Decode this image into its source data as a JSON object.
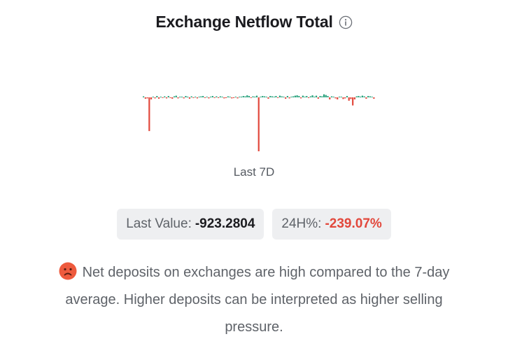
{
  "header": {
    "title": "Exchange Netflow Total",
    "info_icon": "info-circle-icon"
  },
  "period_label": "Last 7D",
  "stats": {
    "last_value_label": "Last Value:",
    "last_value": "-923.2804",
    "change_label": "24H%:",
    "change_value": "-239.07%"
  },
  "message": {
    "icon": "sad-face-icon",
    "text": "Net deposits on exchanges are high compared to the 7-day average. Higher deposits can be interpreted as higher selling pressure."
  },
  "colors": {
    "positive": "#26a17b",
    "negative": "#e2483c",
    "pill_bg": "#eeeff1"
  },
  "chart_data": {
    "type": "bar",
    "title": "Exchange Netflow Total",
    "xlabel": "Last 7D",
    "ylabel": "",
    "grid": false,
    "legend": "none",
    "ylim": [
      -80,
      10
    ],
    "values": [
      1.5,
      -2,
      -1.5,
      -50,
      -3,
      1,
      -1.5,
      2,
      -2,
      1,
      -1,
      1.5,
      -1.5,
      2,
      -1,
      -2,
      1.5,
      2.5,
      -1.5,
      1,
      1,
      -1.5,
      2,
      1,
      -2,
      1.5,
      -1,
      1,
      -1.5,
      1,
      1.5,
      2,
      -1,
      1,
      -1.5,
      1,
      2,
      -1,
      1.5,
      -1,
      1.5,
      1,
      -1.5,
      -1,
      1.5,
      1,
      -1.5,
      -1,
      1,
      -1.5,
      1,
      1,
      2,
      1.5,
      3,
      2,
      -1,
      1.5,
      1,
      2.5,
      -80,
      1,
      2,
      1.5,
      1,
      -2,
      2,
      1.5,
      1,
      2,
      -1,
      2.5,
      1.5,
      1,
      -2,
      2,
      -1.5,
      1,
      1.5,
      2.5,
      3,
      2,
      -1.5,
      2.5,
      1,
      2,
      -1,
      1.5,
      3,
      1,
      2.5,
      -2,
      2,
      1.5,
      4.5,
      3.5,
      2,
      -3,
      1.5,
      1,
      -1.5,
      -3,
      1,
      1,
      -2.5,
      -1.5,
      2,
      -5,
      -2.5,
      -12,
      -3,
      1.5,
      2,
      1,
      2.5,
      1.5,
      -2,
      2,
      1.5,
      1,
      -2
    ]
  }
}
